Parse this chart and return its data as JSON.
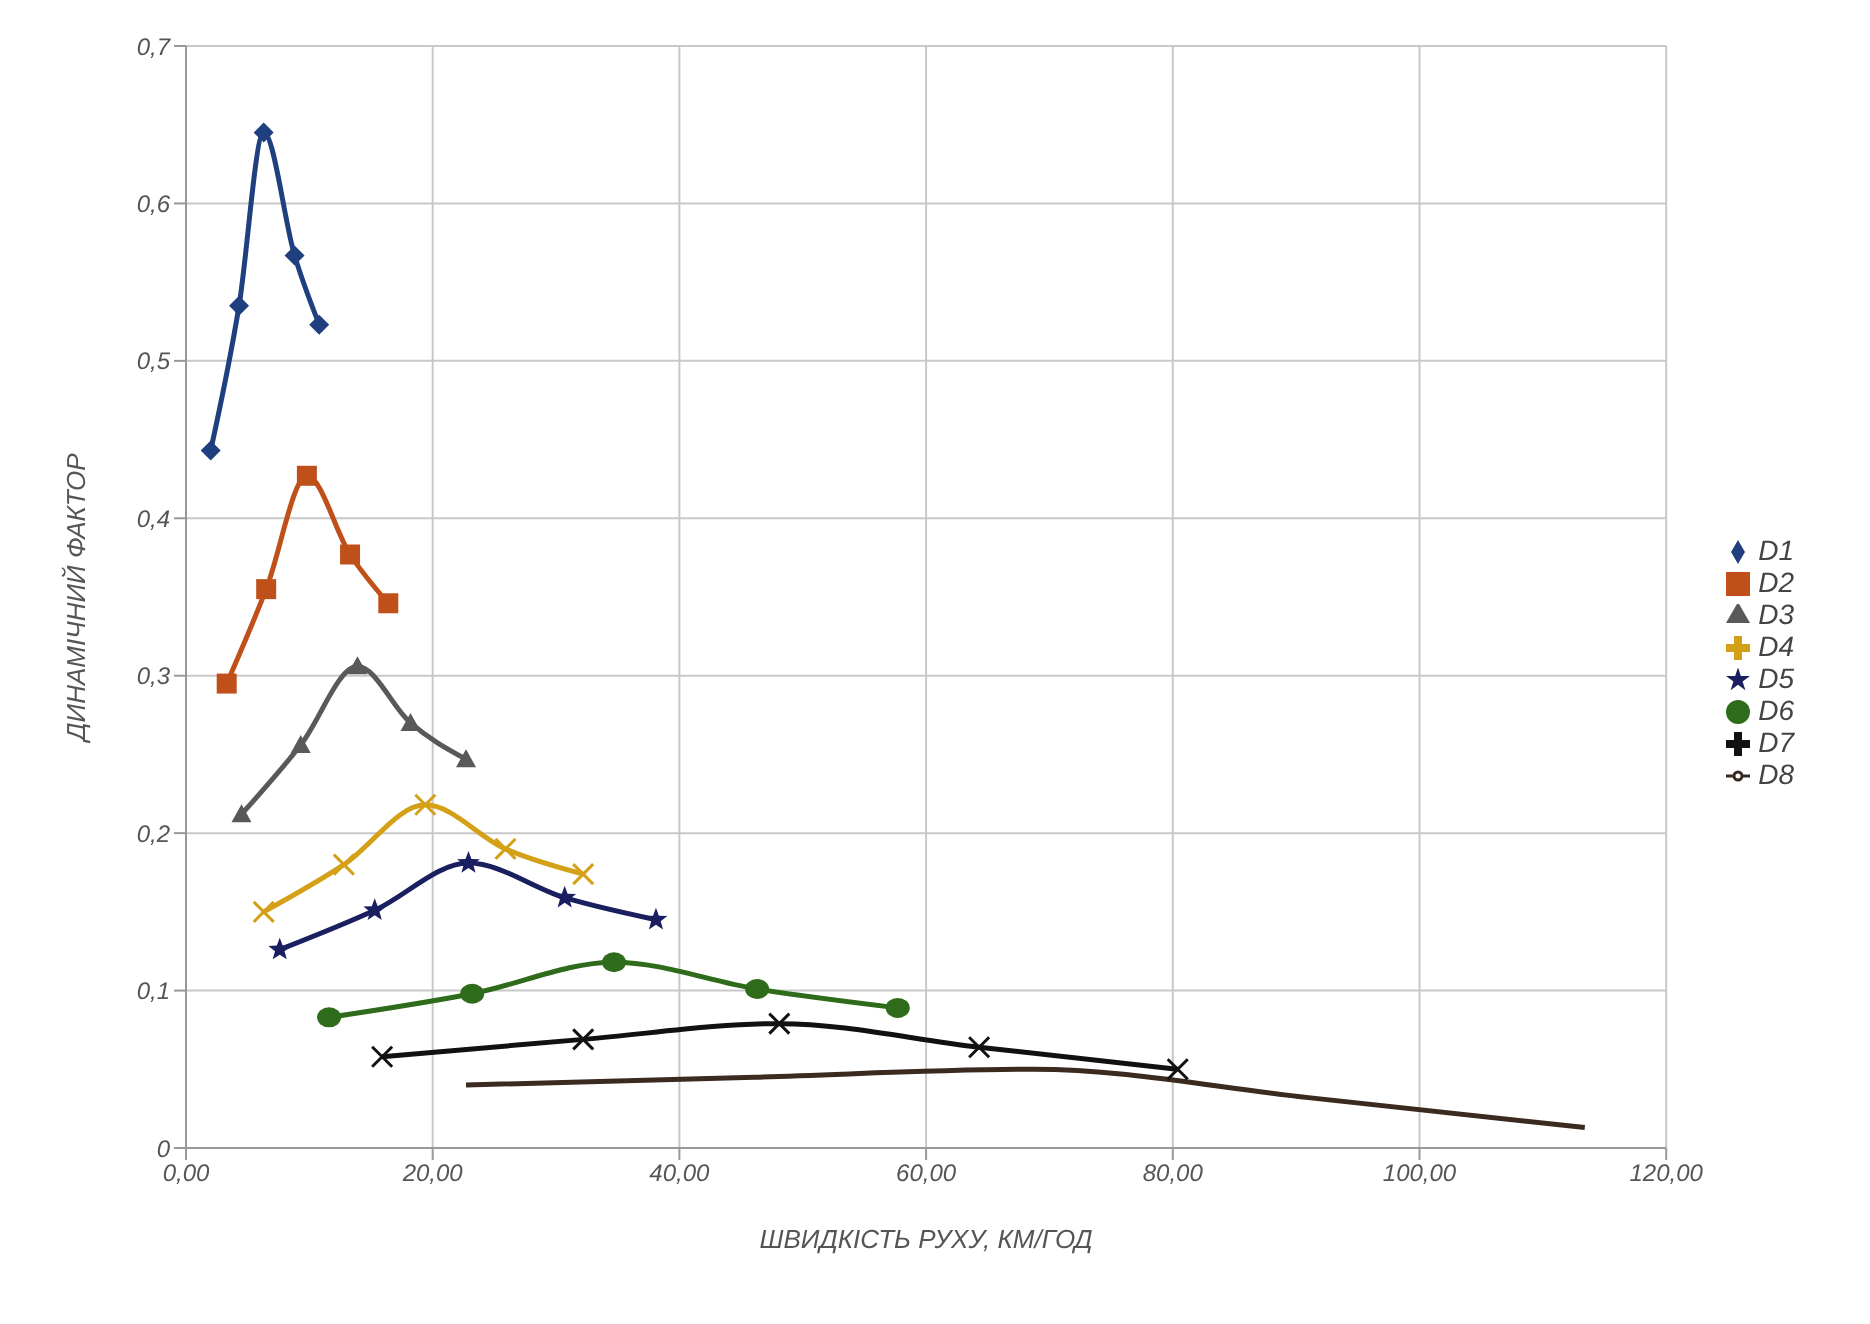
{
  "chart_data": {
    "type": "line",
    "xlabel": "ШВИДКІСТЬ  РУХУ, КМ/ГОД",
    "ylabel": "ДИНАМІЧНИЙ ФАКТОР",
    "xlim": [
      0,
      120
    ],
    "xticks": [
      {
        "value": 0,
        "label": "0,00"
      },
      {
        "value": 20,
        "label": "20,00"
      },
      {
        "value": 40,
        "label": "40,00"
      },
      {
        "value": 60,
        "label": "60,00"
      },
      {
        "value": 80,
        "label": "80,00"
      },
      {
        "value": 100,
        "label": "100,00"
      },
      {
        "value": 120,
        "label": "120,00"
      }
    ],
    "ylim": [
      0,
      0.7
    ],
    "yticks": [
      0,
      {
        "value": 0.1,
        "label": "0,1"
      },
      {
        "value": 0.2,
        "label": "0,2"
      },
      {
        "value": 0.3,
        "label": "0,3"
      },
      {
        "value": 0.4,
        "label": "0,4"
      },
      {
        "value": 0.5,
        "label": "0,5"
      },
      {
        "value": 0.6,
        "label": "0,6"
      },
      {
        "value": 0.7,
        "label": "0,7"
      }
    ],
    "grid": true,
    "legend": "right",
    "series": [
      {
        "name": "D1",
        "color": "#1f3f7f",
        "marker": "diamond",
        "x": [
          2.0,
          4.3,
          6.3,
          8.8,
          10.8
        ],
        "values": [
          0.443,
          0.535,
          0.645,
          0.567,
          0.523
        ]
      },
      {
        "name": "D2",
        "color": "#c0501a",
        "marker": "square",
        "x": [
          3.3,
          6.5,
          9.8,
          13.3,
          16.4
        ],
        "values": [
          0.295,
          0.355,
          0.427,
          0.377,
          0.346
        ]
      },
      {
        "name": "D3",
        "color": "#595959",
        "marker": "triangle",
        "x": [
          4.5,
          9.3,
          13.9,
          18.2,
          22.7
        ],
        "values": [
          0.212,
          0.256,
          0.306,
          0.27,
          0.247
        ]
      },
      {
        "name": "D4",
        "color": "#d4a017",
        "marker": "cross",
        "x": [
          6.3,
          12.8,
          19.4,
          25.9,
          32.2
        ],
        "values": [
          0.15,
          0.18,
          0.218,
          0.19,
          0.174
        ]
      },
      {
        "name": "D5",
        "color": "#1a1f5f",
        "marker": "star",
        "x": [
          7.6,
          15.3,
          22.9,
          30.7,
          38.1
        ],
        "values": [
          0.126,
          0.151,
          0.181,
          0.159,
          0.145
        ]
      },
      {
        "name": "D6",
        "color": "#2e6b1a",
        "marker": "circle",
        "x": [
          11.6,
          23.2,
          34.7,
          46.3,
          57.7
        ],
        "values": [
          0.083,
          0.098,
          0.118,
          0.101,
          0.089
        ]
      },
      {
        "name": "D7",
        "color": "#111111",
        "marker": "cross",
        "x": [
          15.9,
          32.2,
          48.1,
          64.3,
          80.4
        ],
        "values": [
          0.058,
          0.069,
          0.079,
          0.064,
          0.05
        ]
      },
      {
        "name": "D8",
        "color": "#3a2a20",
        "marker": "none",
        "x": [
          22.7,
          46.1,
          68.7,
          91,
          113.4
        ],
        "values": [
          0.04,
          0.045,
          0.05,
          0.032,
          0.013
        ]
      }
    ]
  }
}
